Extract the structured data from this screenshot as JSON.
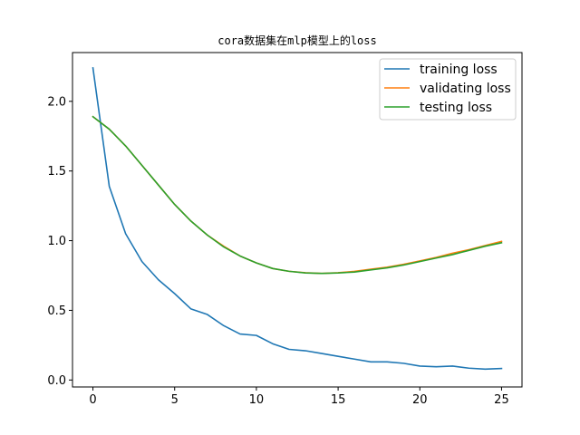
{
  "chart_data": {
    "type": "line",
    "title": "cora数据集在mlp模型上的loss",
    "xlabel": "",
    "ylabel": "",
    "xlim": [
      -1.25,
      26.25
    ],
    "ylim": [
      -0.05,
      2.35
    ],
    "xticks": [
      0,
      5,
      10,
      15,
      20,
      25
    ],
    "yticks": [
      0.0,
      0.5,
      1.0,
      1.5,
      2.0
    ],
    "grid": false,
    "legend_position": "top-right",
    "x": [
      0,
      1,
      2,
      3,
      4,
      5,
      6,
      7,
      8,
      9,
      10,
      11,
      12,
      13,
      14,
      15,
      16,
      17,
      18,
      19,
      20,
      21,
      22,
      23,
      24,
      25
    ],
    "series": [
      {
        "name": "training loss",
        "color": "#1f77b4",
        "values": [
          2.24,
          1.39,
          1.05,
          0.85,
          0.72,
          0.62,
          0.51,
          0.47,
          0.39,
          0.33,
          0.32,
          0.26,
          0.22,
          0.21,
          0.19,
          0.17,
          0.15,
          0.13,
          0.13,
          0.12,
          0.1,
          0.095,
          0.1,
          0.085,
          0.078,
          0.083
        ]
      },
      {
        "name": "validating loss",
        "color": "#ff7f0e",
        "values": [
          1.89,
          1.8,
          1.68,
          1.54,
          1.4,
          1.26,
          1.14,
          1.04,
          0.96,
          0.89,
          0.84,
          0.8,
          0.78,
          0.77,
          0.765,
          0.77,
          0.78,
          0.795,
          0.81,
          0.83,
          0.855,
          0.88,
          0.91,
          0.935,
          0.965,
          0.995
        ]
      },
      {
        "name": "testing loss",
        "color": "#2ca02c",
        "values": [
          1.89,
          1.8,
          1.68,
          1.54,
          1.4,
          1.26,
          1.14,
          1.04,
          0.955,
          0.89,
          0.84,
          0.8,
          0.78,
          0.768,
          0.765,
          0.768,
          0.775,
          0.79,
          0.805,
          0.825,
          0.85,
          0.875,
          0.9,
          0.93,
          0.96,
          0.985
        ]
      }
    ]
  }
}
